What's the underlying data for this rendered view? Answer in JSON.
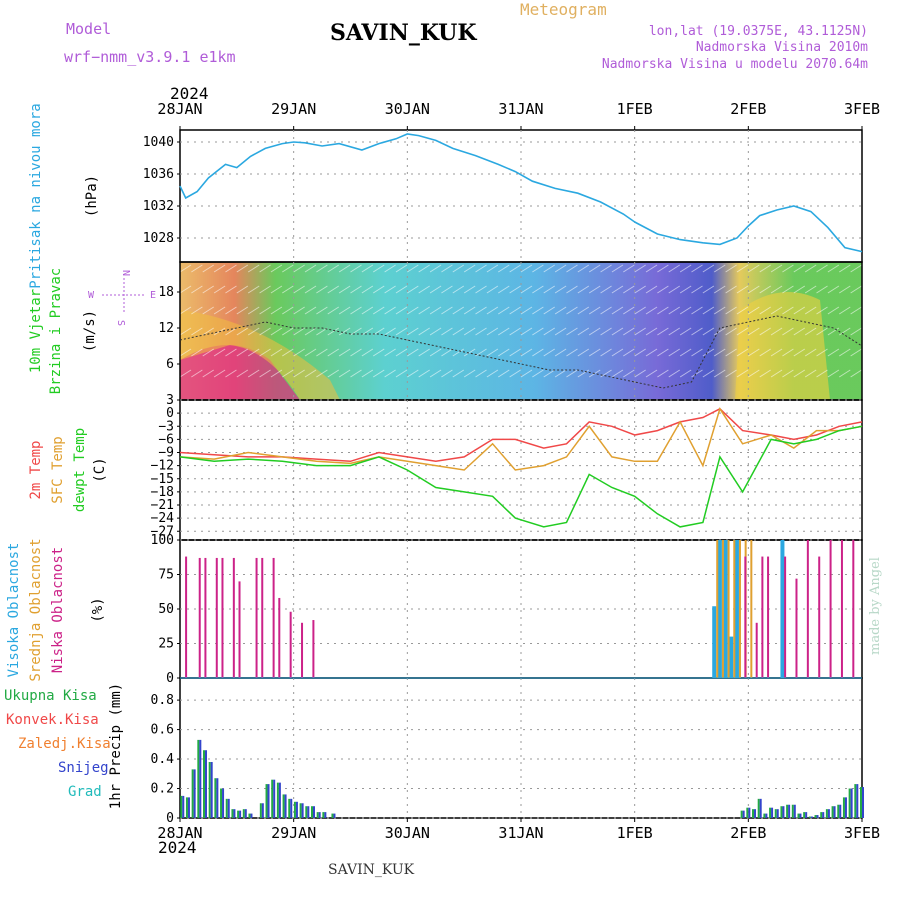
{
  "header": {
    "model_label": "Model",
    "model_name": "wrf−nmm_v3.9.1  e1km",
    "station": "SAVIN_KUK",
    "meteogram_label": "Meteogram",
    "lonlat": "lon,lat (19.0375E, 43.1125N)",
    "elevation": "Nadmorska Visina 2010m",
    "model_elevation": "Nadmorska Visina u modelu 2070.64m",
    "year_top": "2024",
    "year_bottom": "2024",
    "footer_station": "SAVIN_KUK",
    "credit": "made by Angel"
  },
  "colors": {
    "pressure": "#2ba8e0",
    "wind_green": "#22cc22",
    "temp2m": "#f04848",
    "sfc_temp": "#e0a030",
    "dewpt": "#22cc22",
    "cloud_high": "#2ba8e0",
    "cloud_mid": "#e0a030",
    "cloud_low": "#cc2288",
    "precip_total": "#22aa44",
    "precip_conv": "#f04848",
    "precip_frz": "#f08030",
    "precip_snow": "#3344cc",
    "precip_grad": "#22bbbb",
    "axis_purple": "#b05cd8"
  },
  "chart_data": [
    {
      "type": "line",
      "panel": "pressure",
      "ylabel": "Pritisak na nivou mora",
      "unit": "(hPa)",
      "yticks": [
        "1040",
        "1036",
        "1032",
        "1028"
      ],
      "ylim": [
        1025,
        1041.5
      ],
      "x": [
        0,
        0.05,
        0.15,
        0.25,
        0.4,
        0.5,
        0.62,
        0.75,
        0.9,
        1.0,
        1.1,
        1.25,
        1.4,
        1.6,
        1.75,
        1.9,
        2.0,
        2.1,
        2.25,
        2.4,
        2.6,
        2.8,
        2.95,
        3.1,
        3.3,
        3.5,
        3.7,
        3.9,
        4.0,
        4.2,
        4.4,
        4.6,
        4.75,
        4.9,
        5.0,
        5.1,
        5.25,
        5.4,
        5.55,
        5.7,
        5.85,
        6.0
      ],
      "values": [
        1034.5,
        1033.0,
        1033.8,
        1035.5,
        1037.2,
        1036.8,
        1038.2,
        1039.2,
        1039.8,
        1040.0,
        1039.9,
        1039.5,
        1039.8,
        1039.0,
        1039.8,
        1040.4,
        1041.0,
        1040.8,
        1040.2,
        1039.2,
        1038.3,
        1037.2,
        1036.3,
        1035.1,
        1034.2,
        1033.6,
        1032.5,
        1031.0,
        1030.0,
        1028.5,
        1027.8,
        1027.4,
        1027.2,
        1028.0,
        1029.5,
        1030.8,
        1031.5,
        1032.0,
        1031.3,
        1029.3,
        1026.8,
        1026.3
      ]
    },
    {
      "type": "heatmap",
      "panel": "wind",
      "ylabel": "10m Vjetar Brzina i Pravac",
      "unit": "(m/s)",
      "compass": [
        "N",
        "W",
        "E",
        "S"
      ],
      "yticks": [
        "18",
        "12",
        "6"
      ],
      "ylim": [
        0,
        23
      ],
      "x": [
        0,
        0.25,
        0.5,
        0.75,
        1.0,
        1.25,
        1.5,
        1.75,
        2.0,
        2.25,
        2.5,
        2.75,
        3.0,
        3.25,
        3.5,
        3.75,
        4.0,
        4.25,
        4.5,
        4.75,
        5.0,
        5.25,
        5.5,
        5.75,
        6.0
      ],
      "speed": [
        10,
        11,
        12,
        13,
        12,
        12,
        11,
        11,
        10,
        9,
        8,
        7,
        6,
        5,
        5,
        4,
        3,
        2,
        3,
        12,
        13,
        14,
        13,
        12,
        9
      ]
    },
    {
      "type": "line",
      "panel": "temperature",
      "ylabel_parts": [
        "2m Temp",
        "SFC Temp",
        "dewpt Temp"
      ],
      "unit": "(C)",
      "yticks": [
        "3",
        "0",
        "−3",
        "−6",
        "−9",
        "−12",
        "−15",
        "−18",
        "−21",
        "−24",
        "−27"
      ],
      "ylim": [
        -29,
        3
      ],
      "x": [
        0,
        0.3,
        0.6,
        0.9,
        1.2,
        1.5,
        1.75,
        2.0,
        2.25,
        2.5,
        2.75,
        2.95,
        3.2,
        3.4,
        3.6,
        3.8,
        4.0,
        4.2,
        4.4,
        4.6,
        4.75,
        4.95,
        5.2,
        5.4,
        5.6,
        5.8,
        6.0
      ],
      "series": [
        {
          "name": "2m Temp",
          "values": [
            -9,
            -9.5,
            -10,
            -10,
            -10.5,
            -11,
            -9,
            -10,
            -11,
            -10,
            -6,
            -6,
            -8,
            -7,
            -2,
            -3,
            -5,
            -4,
            -2,
            -1,
            1,
            -4,
            -5,
            -6,
            -5,
            -3,
            -2
          ]
        },
        {
          "name": "SFC Temp",
          "values": [
            -10,
            -10.5,
            -9,
            -10,
            -11,
            -11.5,
            -10,
            -11,
            -12,
            -13,
            -7,
            -13,
            -12,
            -10,
            -3,
            -10,
            -11,
            -11,
            -2,
            -12,
            1,
            -7,
            -5,
            -8,
            -4,
            -4,
            -3
          ]
        },
        {
          "name": "dewpt Temp",
          "values": [
            -10,
            -11,
            -10.5,
            -11,
            -12,
            -12,
            -10,
            -13,
            -17,
            -18,
            -19,
            -24,
            -26,
            -25,
            -14,
            -17,
            -19,
            -23,
            -26,
            -25,
            -10,
            -18,
            -6,
            -7,
            -6,
            -4,
            -3
          ]
        }
      ]
    },
    {
      "type": "bar",
      "panel": "clouds",
      "ylabel_parts": [
        "Visoka Oblacnost",
        "Srednja Oblacnost",
        "Niska Oblacnost"
      ],
      "unit": "(%)",
      "yticks": [
        "100",
        "75",
        "50",
        "25",
        "0"
      ],
      "ylim": [
        0,
        100
      ],
      "x": [
        0.08,
        0.2,
        0.25,
        0.35,
        0.4,
        0.5,
        0.55,
        0.7,
        0.75,
        0.85,
        0.9,
        1.0,
        1.1,
        1.2,
        1.3,
        1.4,
        4.7,
        4.75,
        4.8,
        4.85,
        4.9,
        4.95,
        5.0,
        5.1,
        5.15,
        5.2,
        5.3,
        5.35,
        5.45,
        5.55,
        5.65,
        5.75,
        5.85,
        5.95
      ],
      "series": [
        {
          "name": "Visoka Oblacnost",
          "values": [
            0,
            0,
            0,
            0,
            0,
            0,
            0,
            0,
            0,
            0,
            0,
            0,
            0,
            0,
            0,
            0,
            52,
            100,
            100,
            30,
            100,
            0,
            0,
            0,
            0,
            0,
            100,
            0,
            0,
            0,
            0,
            0,
            0,
            0
          ]
        },
        {
          "name": "Srednja Oblacnost",
          "values": [
            0,
            0,
            0,
            0,
            0,
            0,
            0,
            0,
            0,
            0,
            0,
            0,
            0,
            0,
            0,
            0,
            100,
            100,
            100,
            100,
            100,
            100,
            100,
            0,
            0,
            0,
            0,
            0,
            0,
            0,
            0,
            0,
            0,
            0
          ]
        },
        {
          "name": "Niska Oblacnost",
          "values": [
            88,
            87,
            87,
            87,
            87,
            87,
            70,
            87,
            87,
            87,
            58,
            48,
            40,
            42,
            0,
            0,
            0,
            0,
            0,
            0,
            0,
            0,
            88,
            40,
            88,
            88,
            0,
            88,
            72,
            100,
            88,
            100,
            100,
            100
          ]
        }
      ]
    },
    {
      "type": "bar",
      "panel": "precip",
      "legend": [
        "Ukupna Kisa",
        "Konvek.Kisa",
        "Zaledj.Kisa",
        "Snijeg",
        "Grad"
      ],
      "ylabel": "1hr Precip (mm)",
      "yticks": [
        "0.8",
        "0.6",
        "0.4",
        "0.2",
        "0"
      ],
      "ylim": [
        0,
        0.95
      ],
      "x": [
        0.02,
        0.07,
        0.12,
        0.17,
        0.22,
        0.27,
        0.32,
        0.37,
        0.42,
        0.47,
        0.52,
        0.57,
        0.62,
        0.72,
        0.77,
        0.82,
        0.87,
        0.92,
        0.97,
        1.02,
        1.07,
        1.12,
        1.17,
        1.22,
        1.27,
        1.35,
        4.95,
        5.0,
        5.05,
        5.1,
        5.15,
        5.2,
        5.25,
        5.3,
        5.35,
        5.4,
        5.45,
        5.5,
        5.55,
        5.6,
        5.65,
        5.7,
        5.75,
        5.8,
        5.85,
        5.9,
        5.95,
        6.0
      ],
      "series": [
        {
          "name": "Snijeg",
          "values": [
            0.15,
            0.14,
            0.33,
            0.53,
            0.46,
            0.38,
            0.27,
            0.2,
            0.13,
            0.06,
            0.05,
            0.06,
            0.03,
            0.1,
            0.23,
            0.26,
            0.24,
            0.16,
            0.13,
            0.11,
            0.1,
            0.08,
            0.08,
            0.04,
            0.04,
            0.03,
            0.05,
            0.07,
            0.06,
            0.13,
            0.03,
            0.07,
            0.06,
            0.08,
            0.09,
            0.09,
            0.03,
            0.04,
            0.01,
            0.02,
            0.04,
            0.06,
            0.08,
            0.09,
            0.14,
            0.2,
            0.23,
            0.21
          ]
        }
      ]
    }
  ],
  "time_axis": {
    "labels": [
      "28JAN",
      "29JAN",
      "30JAN",
      "31JAN",
      "1FEB",
      "2FEB",
      "3FEB"
    ]
  }
}
